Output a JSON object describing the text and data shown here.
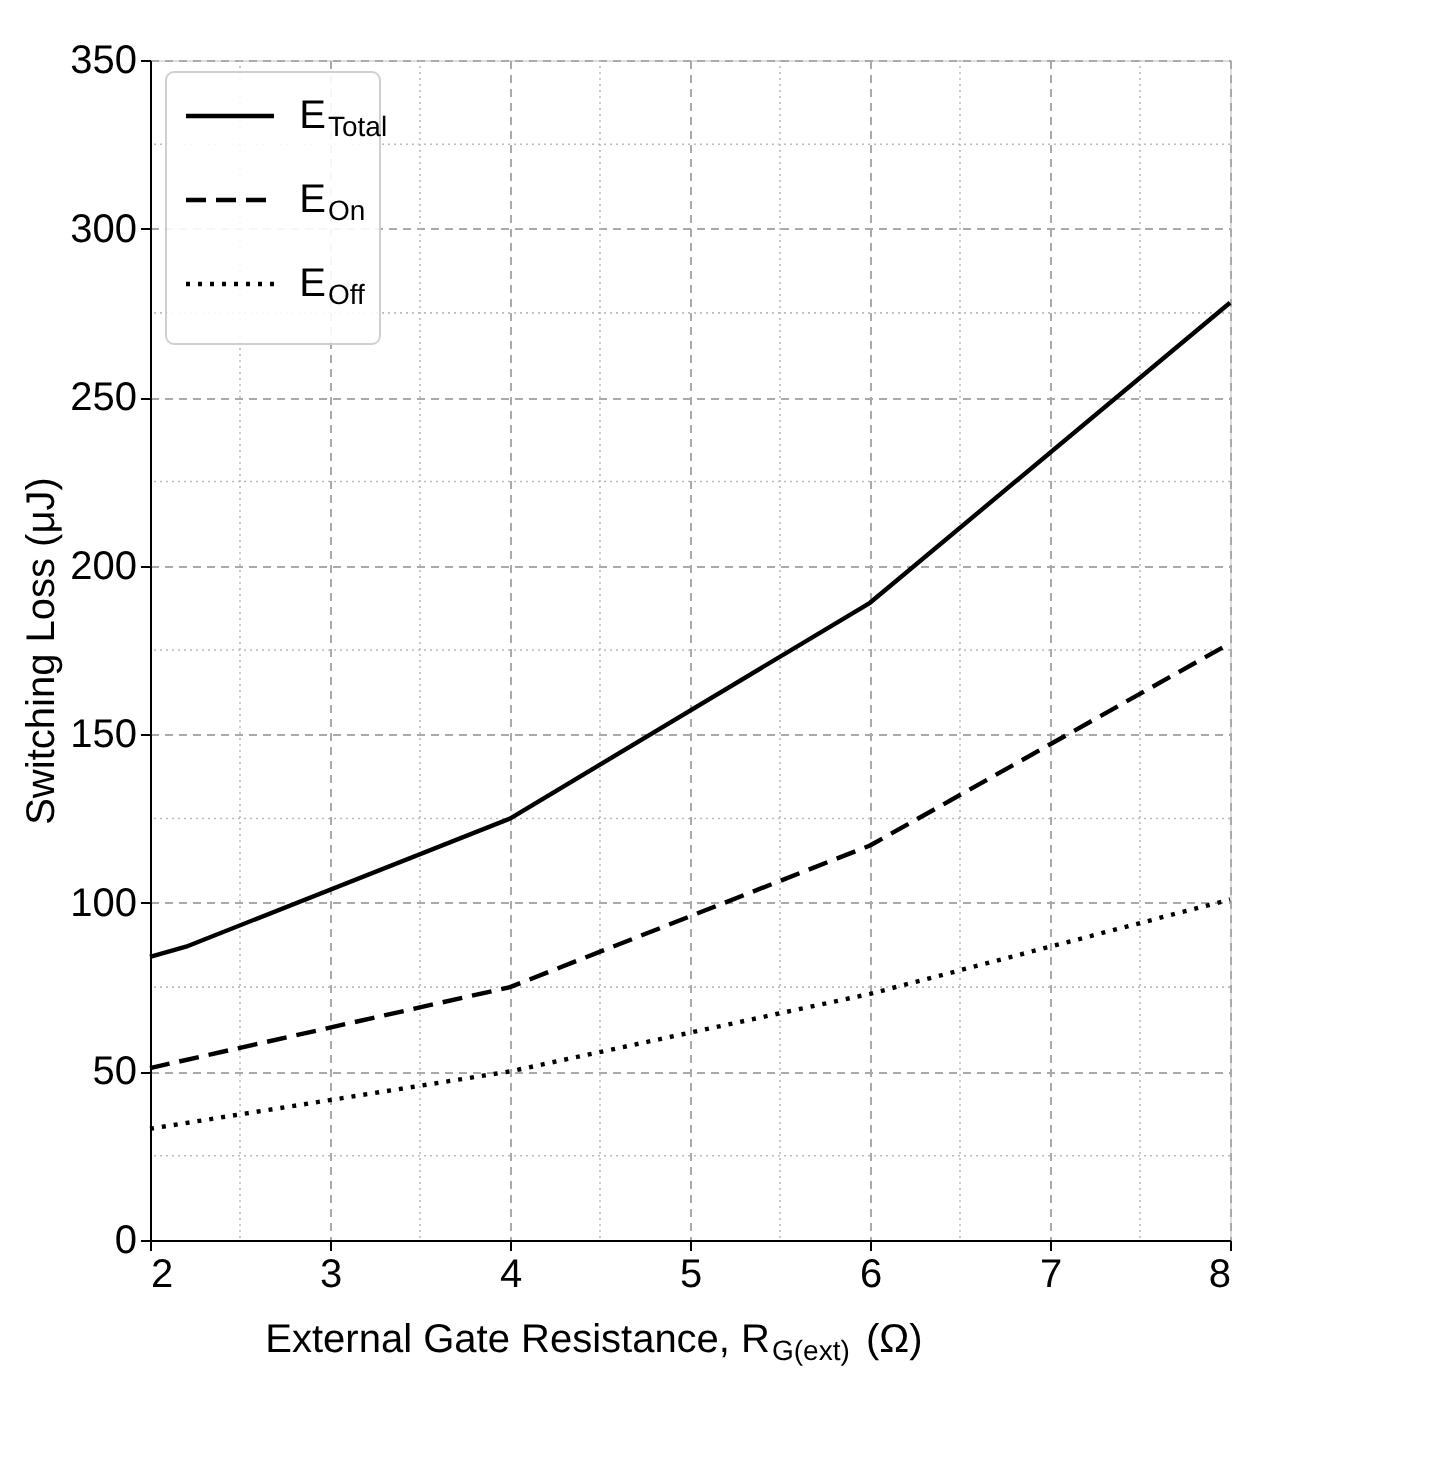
{
  "chart_data": {
    "type": "line",
    "xlabel": "External Gate Resistance, R$_{G(ext)}$ (Ω)",
    "ylabel": "Switching Loss (μJ)",
    "xlim": [
      2,
      8
    ],
    "xticks": [
      2,
      3,
      4,
      5,
      6,
      7,
      8
    ],
    "ylim": [
      0,
      350
    ],
    "yticks": [
      0,
      50,
      100,
      150,
      200,
      250,
      300,
      350
    ],
    "grid": true,
    "legend": "top left",
    "marker": "none",
    "series": [
      {
        "name": "E$_{Total}$",
        "color": "#000000",
        "line_style": "solid",
        "x": [
          2,
          2.2,
          4,
          6,
          8
        ],
        "values": [
          84,
          87,
          125,
          189,
          278
        ]
      },
      {
        "name": "E$_{On}$",
        "color": "#000000",
        "line_style": "dashed",
        "x": [
          2,
          4,
          6,
          8
        ],
        "values": [
          51,
          75,
          117,
          177
        ]
      },
      {
        "name": "E$_{Off}$",
        "color": "#000000",
        "line_style": "dotted",
        "x": [
          2,
          4,
          6,
          8
        ],
        "values": [
          33,
          50,
          73,
          101
        ]
      }
    ]
  }
}
